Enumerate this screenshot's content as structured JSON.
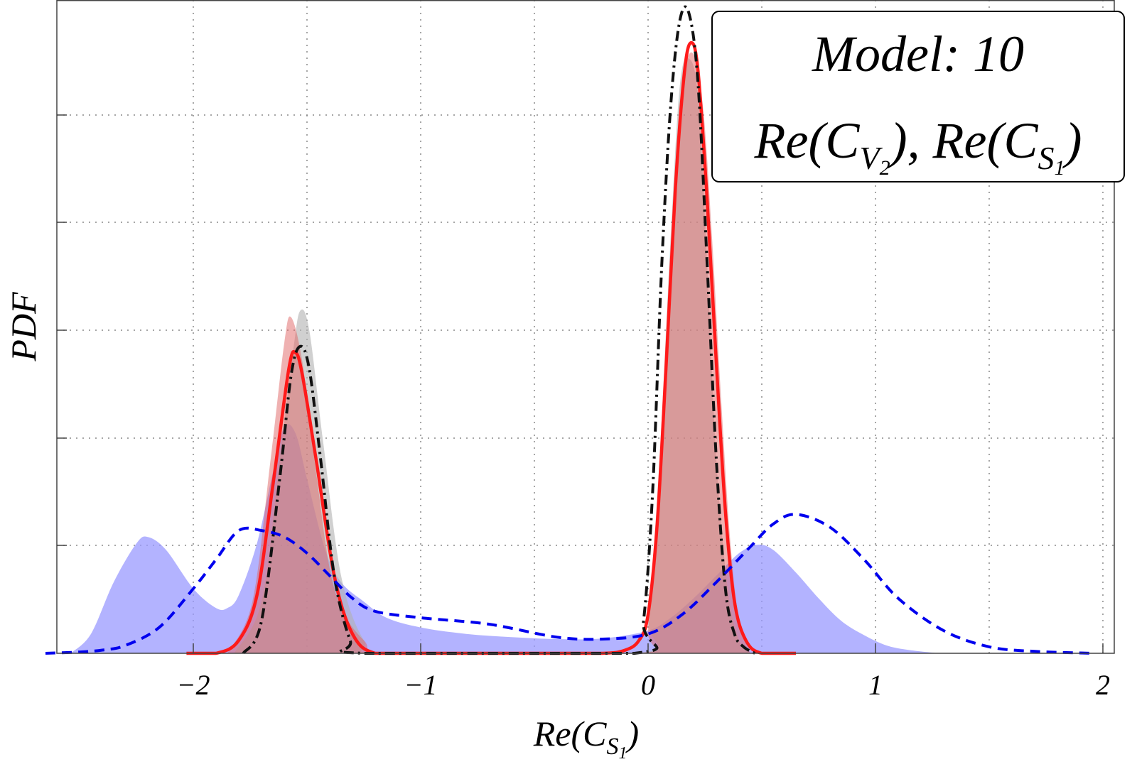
{
  "chart_data": {
    "type": "area",
    "title": "",
    "xlabel": "Re(C_{S_1})",
    "xlabel_parts": {
      "base": "Re(C",
      "sub": "S",
      "subsub": "1",
      "close": ")"
    },
    "ylabel": "PDF",
    "xlim": [
      -2.6,
      2.05
    ],
    "ylim": [
      0,
      1.0
    ],
    "grid": true,
    "x_ticks": [
      -2,
      -1,
      0,
      1,
      2
    ],
    "x_tick_labels": [
      "−2",
      "−1",
      "0",
      "1",
      "2"
    ],
    "y_grid_values": [
      0.167,
      0.333,
      0.5,
      0.667,
      0.833
    ],
    "legend": {
      "placement": "top-right",
      "line1": "Model: 10",
      "line2_parts": [
        {
          "base": "Re(C",
          "sub": "V",
          "subsub": "2",
          "close": "),  "
        },
        {
          "base": "Re(C",
          "sub": "S",
          "subsub": "1",
          "close": ")"
        }
      ]
    },
    "series": [
      {
        "name": "blue-filled-area",
        "style": "filled",
        "color": "#9999ff",
        "opacity": 0.75,
        "x": [
          -2.54,
          -2.45,
          -2.35,
          -2.25,
          -2.2,
          -2.12,
          -2.0,
          -1.9,
          -1.85,
          -1.8,
          -1.72,
          -1.65,
          -1.6,
          -1.55,
          -1.5,
          -1.42,
          -1.35,
          -1.25,
          -1.15,
          -1.0,
          -0.8,
          -0.6,
          -0.4,
          -0.2,
          0.0,
          0.1,
          0.2,
          0.3,
          0.4,
          0.48,
          0.55,
          0.65,
          0.75,
          0.85,
          0.95,
          1.05,
          1.15,
          1.28
        ],
        "y": [
          0.0,
          0.03,
          0.11,
          0.17,
          0.18,
          0.16,
          0.1,
          0.07,
          0.07,
          0.09,
          0.17,
          0.28,
          0.35,
          0.34,
          0.27,
          0.16,
          0.11,
          0.08,
          0.055,
          0.04,
          0.03,
          0.025,
          0.022,
          0.023,
          0.035,
          0.055,
          0.085,
          0.12,
          0.155,
          0.168,
          0.16,
          0.125,
          0.085,
          0.05,
          0.028,
          0.012,
          0.005,
          0.0
        ]
      },
      {
        "name": "gray-filled-area",
        "style": "filled",
        "color": "#b0b0b0",
        "opacity": 0.6,
        "x": [
          -1.82,
          -1.7,
          -1.62,
          -1.56,
          -1.53,
          -1.49,
          -1.43,
          -1.35,
          -1.25,
          -1.15,
          -0.05,
          0.0,
          0.05,
          0.1,
          0.14,
          0.18,
          0.22,
          0.26,
          0.3,
          0.35,
          0.4,
          0.45
        ],
        "y": [
          0.0,
          0.08,
          0.3,
          0.47,
          0.53,
          0.5,
          0.33,
          0.12,
          0.02,
          0.0,
          0.0,
          0.06,
          0.3,
          0.65,
          0.88,
          0.92,
          0.86,
          0.6,
          0.3,
          0.1,
          0.02,
          0.0
        ]
      },
      {
        "name": "red-filled-area",
        "style": "filled",
        "color": "#e06464",
        "opacity": 0.5,
        "x": [
          -1.85,
          -1.74,
          -1.66,
          -1.6,
          -1.57,
          -1.52,
          -1.46,
          -1.38,
          -1.25,
          -1.1,
          -0.05,
          0.0,
          0.05,
          0.1,
          0.14,
          0.19,
          0.24,
          0.28,
          0.32,
          0.36,
          0.4,
          0.45
        ],
        "y": [
          0.0,
          0.08,
          0.3,
          0.48,
          0.52,
          0.45,
          0.28,
          0.1,
          0.02,
          0.0,
          0.0,
          0.04,
          0.25,
          0.6,
          0.85,
          0.93,
          0.85,
          0.65,
          0.4,
          0.18,
          0.05,
          0.0
        ]
      },
      {
        "name": "red-solid-line",
        "style": "solid",
        "color": "#ff1a1a",
        "x": [
          -2.03,
          -1.9,
          -1.8,
          -1.72,
          -1.65,
          -1.58,
          -1.55,
          -1.52,
          -1.46,
          -1.38,
          -1.3,
          -1.2,
          -1.0,
          -0.5,
          -0.2,
          -0.1,
          -0.04,
          0.0,
          0.04,
          0.08,
          0.12,
          0.16,
          0.19,
          0.22,
          0.26,
          0.3,
          0.34,
          0.38,
          0.43,
          0.5,
          0.65
        ],
        "y": [
          0.0,
          0.0,
          0.02,
          0.09,
          0.26,
          0.44,
          0.465,
          0.43,
          0.3,
          0.12,
          0.03,
          0.0,
          0.0,
          0.0,
          0.0,
          0.005,
          0.02,
          0.06,
          0.2,
          0.45,
          0.72,
          0.9,
          0.945,
          0.9,
          0.7,
          0.45,
          0.22,
          0.08,
          0.02,
          0.0,
          0.0
        ]
      },
      {
        "name": "black-dashdot-line",
        "style": "dashdot",
        "color": "#111111",
        "x": [
          -1.78,
          -1.7,
          -1.62,
          -1.57,
          -1.53,
          -1.49,
          -1.44,
          -1.38,
          -1.31,
          -1.25,
          -0.06,
          -0.02,
          0.02,
          0.06,
          0.1,
          0.14,
          0.18,
          0.22,
          0.26,
          0.3,
          0.34,
          0.38,
          0.42,
          0.47
        ],
        "y": [
          0.0,
          0.05,
          0.27,
          0.43,
          0.475,
          0.44,
          0.3,
          0.12,
          0.02,
          0.0,
          0.0,
          0.05,
          0.25,
          0.6,
          0.85,
          0.98,
          0.99,
          0.88,
          0.6,
          0.3,
          0.1,
          0.03,
          0.01,
          0.0
        ]
      },
      {
        "name": "blue-dashed-line",
        "style": "dashed",
        "color": "#0000ee",
        "x": [
          -2.65,
          -2.5,
          -2.4,
          -2.3,
          -2.15,
          -2.0,
          -1.9,
          -1.8,
          -1.7,
          -1.6,
          -1.5,
          -1.4,
          -1.3,
          -1.2,
          -1.0,
          -0.7,
          -0.4,
          -0.2,
          0.0,
          0.15,
          0.3,
          0.45,
          0.55,
          0.65,
          0.8,
          0.95,
          1.1,
          1.3,
          1.5,
          1.7,
          1.95
        ],
        "y": [
          0.0,
          0.002,
          0.005,
          0.012,
          0.04,
          0.1,
          0.145,
          0.19,
          0.19,
          0.18,
          0.155,
          0.12,
          0.085,
          0.065,
          0.055,
          0.045,
          0.025,
          0.022,
          0.03,
          0.06,
          0.11,
          0.165,
          0.2,
          0.215,
          0.195,
          0.145,
          0.085,
          0.035,
          0.01,
          0.003,
          0.0
        ]
      }
    ]
  }
}
